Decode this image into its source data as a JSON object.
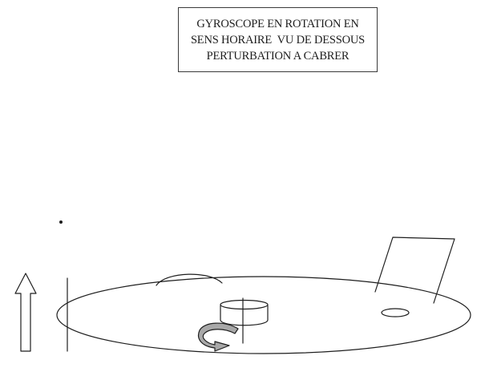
{
  "title_box": {
    "lines": [
      "GYROSCOPE EN ROTATION EN",
      "SENS HORAIRE  VU DE DESSOUS",
      "PERTURBATION A CABRER"
    ]
  },
  "colors": {
    "ink": "#1e1e1e",
    "arrow_fill": "#a8a8a8"
  }
}
